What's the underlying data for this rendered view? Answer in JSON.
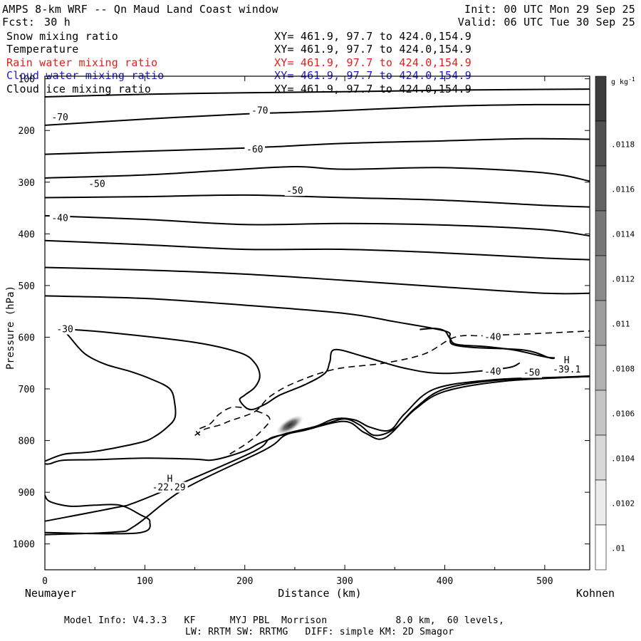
{
  "header": {
    "title": "AMPS 8-km WRF -- Qn Maud Land Coast window",
    "fcst_label": "Fcst:",
    "fcst_value": "30 h",
    "init": "Init: 00 UTC Mon 29 Sep 25",
    "valid": "Valid: 06 UTC Tue 30 Sep 25"
  },
  "fields": [
    {
      "name": "Snow mixing ratio",
      "xy": "XY= 461.9, 97.7 to 424.0,154.9",
      "color": "#000000"
    },
    {
      "name": "Temperature",
      "xy": "XY= 461.9, 97.7 to 424.0,154.9",
      "color": "#000000"
    },
    {
      "name": "Rain water mixing ratio",
      "xy": "XY= 461.9, 97.7 to 424.0,154.9",
      "color": "#e0201b"
    },
    {
      "name": "Cloud water mixing ratio",
      "xy": "XY= 461.9, 97.7 to 424.0,154.9",
      "color": "#1a1acc"
    },
    {
      "name": "Cloud ice mixing ratio",
      "xy": "XY= 461.9, 97.7 to 424.0,154.9",
      "color": "#000000"
    }
  ],
  "footer": {
    "line1": "Model Info: V4.3.3   KF      MYJ PBL  Morrison            8.0 km,  60 levels,",
    "line2": "LW: RRTM SW: RRTMG   DIFF: simple KM: 2D Smagor"
  },
  "chart_data": {
    "type": "cross-section contour",
    "xlabel": "Distance (km)",
    "ylabel": "Pressure (hPa)",
    "x_ticks": [
      0,
      100,
      200,
      300,
      400,
      500
    ],
    "y_ticks": [
      100,
      200,
      300,
      400,
      500,
      600,
      700,
      800,
      900,
      1000
    ],
    "xlim": [
      0,
      545
    ],
    "ylim": [
      1050,
      95
    ],
    "x_end_labels": {
      "left": "Neumayer",
      "right": "Kohnen"
    },
    "colorbar": {
      "units": "g kg",
      "units_exp": "-1",
      "tick_labels": [
        ".0118",
        ".0116",
        ".0114",
        ".0112",
        ".011",
        ".0108",
        ".0106",
        ".0104",
        ".0102",
        ".01"
      ]
    },
    "contour_labels": [
      {
        "text": "-70",
        "x": 15,
        "p": 175
      },
      {
        "text": "-70",
        "x": 215,
        "p": 162
      },
      {
        "text": "-60",
        "x": 210,
        "p": 237
      },
      {
        "text": "-50",
        "x": 52,
        "p": 304
      },
      {
        "text": "-50",
        "x": 250,
        "p": 317
      },
      {
        "text": "-40",
        "x": 15,
        "p": 370
      },
      {
        "text": "-30",
        "x": 20,
        "p": 585
      },
      {
        "text": "-40",
        "x": 448,
        "p": 600
      },
      {
        "text": "-40",
        "x": 448,
        "p": 667
      },
      {
        "text": "-50",
        "x": 487,
        "p": 669
      },
      {
        "text": "H",
        "x": 522,
        "p": 645
      },
      {
        "text": "-39.1",
        "x": 522,
        "p": 663
      },
      {
        "text": "H",
        "x": 125,
        "p": 874
      },
      {
        "text": "-22.29",
        "x": 124,
        "p": 891
      }
    ],
    "contours_solid": [
      [
        [
          0,
          135
        ],
        [
          100,
          130
        ],
        [
          200,
          127
        ],
        [
          300,
          125
        ],
        [
          400,
          122
        ],
        [
          545,
          120
        ]
      ],
      [
        [
          0,
          190
        ],
        [
          100,
          178
        ],
        [
          200,
          168
        ],
        [
          280,
          163
        ],
        [
          350,
          157
        ],
        [
          420,
          152
        ],
        [
          490,
          150
        ],
        [
          545,
          150
        ]
      ],
      [
        [
          0,
          246
        ],
        [
          100,
          240
        ],
        [
          200,
          234
        ],
        [
          300,
          225
        ],
        [
          400,
          220
        ],
        [
          480,
          216
        ],
        [
          545,
          217
        ]
      ],
      [
        [
          0,
          292
        ],
        [
          100,
          286
        ],
        [
          180,
          277
        ],
        [
          250,
          270
        ],
        [
          300,
          275
        ],
        [
          400,
          272
        ],
        [
          500,
          282
        ],
        [
          545,
          298
        ]
      ],
      [
        [
          0,
          330
        ],
        [
          100,
          328
        ],
        [
          200,
          325
        ],
        [
          300,
          330
        ],
        [
          400,
          335
        ],
        [
          500,
          345
        ],
        [
          545,
          348
        ]
      ],
      [
        [
          0,
          365
        ],
        [
          100,
          372
        ],
        [
          200,
          382
        ],
        [
          300,
          380
        ],
        [
          400,
          383
        ],
        [
          500,
          392
        ],
        [
          545,
          404
        ]
      ],
      [
        [
          0,
          413
        ],
        [
          100,
          421
        ],
        [
          200,
          430
        ],
        [
          300,
          430
        ],
        [
          400,
          437
        ],
        [
          500,
          447
        ],
        [
          545,
          450
        ]
      ],
      [
        [
          0,
          465
        ],
        [
          100,
          470
        ],
        [
          200,
          478
        ],
        [
          300,
          490
        ],
        [
          400,
          503
        ],
        [
          500,
          515
        ],
        [
          545,
          515
        ]
      ],
      [
        [
          0,
          520
        ],
        [
          100,
          525
        ],
        [
          200,
          538
        ],
        [
          300,
          554
        ],
        [
          350,
          570
        ],
        [
          400,
          588
        ],
        [
          405,
          600
        ],
        [
          408,
          614
        ],
        [
          430,
          620
        ],
        [
          480,
          625
        ],
        [
          505,
          640
        ],
        [
          510,
          640
        ]
      ],
      [
        [
          0,
          845
        ],
        [
          5,
          845
        ],
        [
          18,
          838
        ],
        [
          50,
          837
        ],
        [
          100,
          834
        ],
        [
          150,
          836
        ],
        [
          170,
          837
        ],
        [
          200,
          820
        ],
        [
          215,
          805
        ],
        [
          240,
          787
        ],
        [
          270,
          773
        ],
        [
          290,
          758
        ],
        [
          310,
          760
        ],
        [
          325,
          774
        ],
        [
          345,
          780
        ],
        [
          360,
          748
        ],
        [
          390,
          700
        ],
        [
          450,
          682
        ],
        [
          510,
          678
        ],
        [
          545,
          675
        ]
      ],
      [
        [
          0,
          956
        ],
        [
          70,
          930
        ],
        [
          90,
          920
        ],
        [
          140,
          880
        ],
        [
          210,
          820
        ],
        [
          225,
          796
        ],
        [
          240,
          788
        ],
        [
          260,
          779
        ],
        [
          280,
          768
        ],
        [
          300,
          758
        ],
        [
          315,
          770
        ],
        [
          330,
          790
        ],
        [
          350,
          777
        ],
        [
          370,
          738
        ],
        [
          400,
          700
        ],
        [
          460,
          682
        ],
        [
          545,
          676
        ]
      ],
      [
        [
          0,
          982
        ],
        [
          70,
          977
        ],
        [
          90,
          965
        ],
        [
          140,
          893
        ],
        [
          220,
          818
        ],
        [
          240,
          790
        ],
        [
          260,
          780
        ],
        [
          300,
          763
        ],
        [
          320,
          785
        ],
        [
          340,
          795
        ],
        [
          370,
          740
        ],
        [
          400,
          705
        ],
        [
          460,
          685
        ],
        [
          545,
          676
        ]
      ],
      [
        [
          0,
          840
        ],
        [
          20,
          826
        ],
        [
          50,
          821
        ],
        [
          95,
          804
        ],
        [
          110,
          792
        ],
        [
          123,
          773
        ],
        [
          130,
          756
        ],
        [
          130,
          730
        ],
        [
          125,
          700
        ],
        [
          105,
          680
        ],
        [
          85,
          666
        ],
        [
          60,
          652
        ],
        [
          40,
          632
        ],
        [
          25,
          600
        ],
        [
          20,
          587
        ],
        [
          25,
          585
        ],
        [
          70,
          592
        ],
        [
          150,
          610
        ],
        [
          195,
          630
        ],
        [
          210,
          650
        ],
        [
          215,
          675
        ],
        [
          210,
          697
        ],
        [
          200,
          712
        ],
        [
          195,
          722
        ],
        [
          205,
          740
        ],
        [
          220,
          730
        ],
        [
          235,
          712
        ],
        [
          260,
          692
        ],
        [
          280,
          670
        ],
        [
          285,
          648
        ],
        [
          290,
          624
        ],
        [
          320,
          638
        ],
        [
          360,
          660
        ],
        [
          400,
          670
        ],
        [
          460,
          660
        ],
        [
          475,
          650
        ]
      ],
      [
        [
          0,
          906
        ],
        [
          5,
          918
        ],
        [
          25,
          927
        ],
        [
          50,
          925
        ],
        [
          75,
          925
        ],
        [
          95,
          943
        ],
        [
          105,
          957
        ],
        [
          92,
          979
        ],
        [
          0,
          978
        ]
      ],
      [
        [
          375,
          585
        ],
        [
          390,
          583
        ],
        [
          400,
          588
        ],
        [
          405,
          602
        ],
        [
          412,
          614
        ],
        [
          440,
          618
        ],
        [
          470,
          625
        ],
        [
          500,
          638
        ],
        [
          510,
          640
        ]
      ]
    ],
    "contours_dashed": [
      [
        [
          150,
          790
        ],
        [
          160,
          778
        ],
        [
          175,
          770
        ],
        [
          185,
          762
        ],
        [
          210,
          744
        ],
        [
          225,
          715
        ],
        [
          250,
          688
        ],
        [
          290,
          662
        ],
        [
          340,
          650
        ],
        [
          380,
          632
        ],
        [
          410,
          600
        ],
        [
          440,
          597
        ],
        [
          490,
          593
        ],
        [
          545,
          588
        ]
      ],
      [
        [
          185,
          826
        ],
        [
          200,
          808
        ],
        [
          213,
          788
        ],
        [
          225,
          760
        ],
        [
          215,
          745
        ],
        [
          190,
          735
        ],
        [
          175,
          748
        ],
        [
          165,
          768
        ],
        [
          152,
          780
        ],
        [
          155,
          790
        ]
      ]
    ],
    "shaded_maximum": {
      "x": 245,
      "p": 770,
      "value_range": [
        0.0102,
        0.0118
      ]
    },
    "extrema": [
      {
        "type": "H",
        "value": -39.1,
        "x": 522,
        "p": 655
      },
      {
        "type": "H",
        "value": -22.29,
        "x": 124,
        "p": 882
      }
    ]
  }
}
